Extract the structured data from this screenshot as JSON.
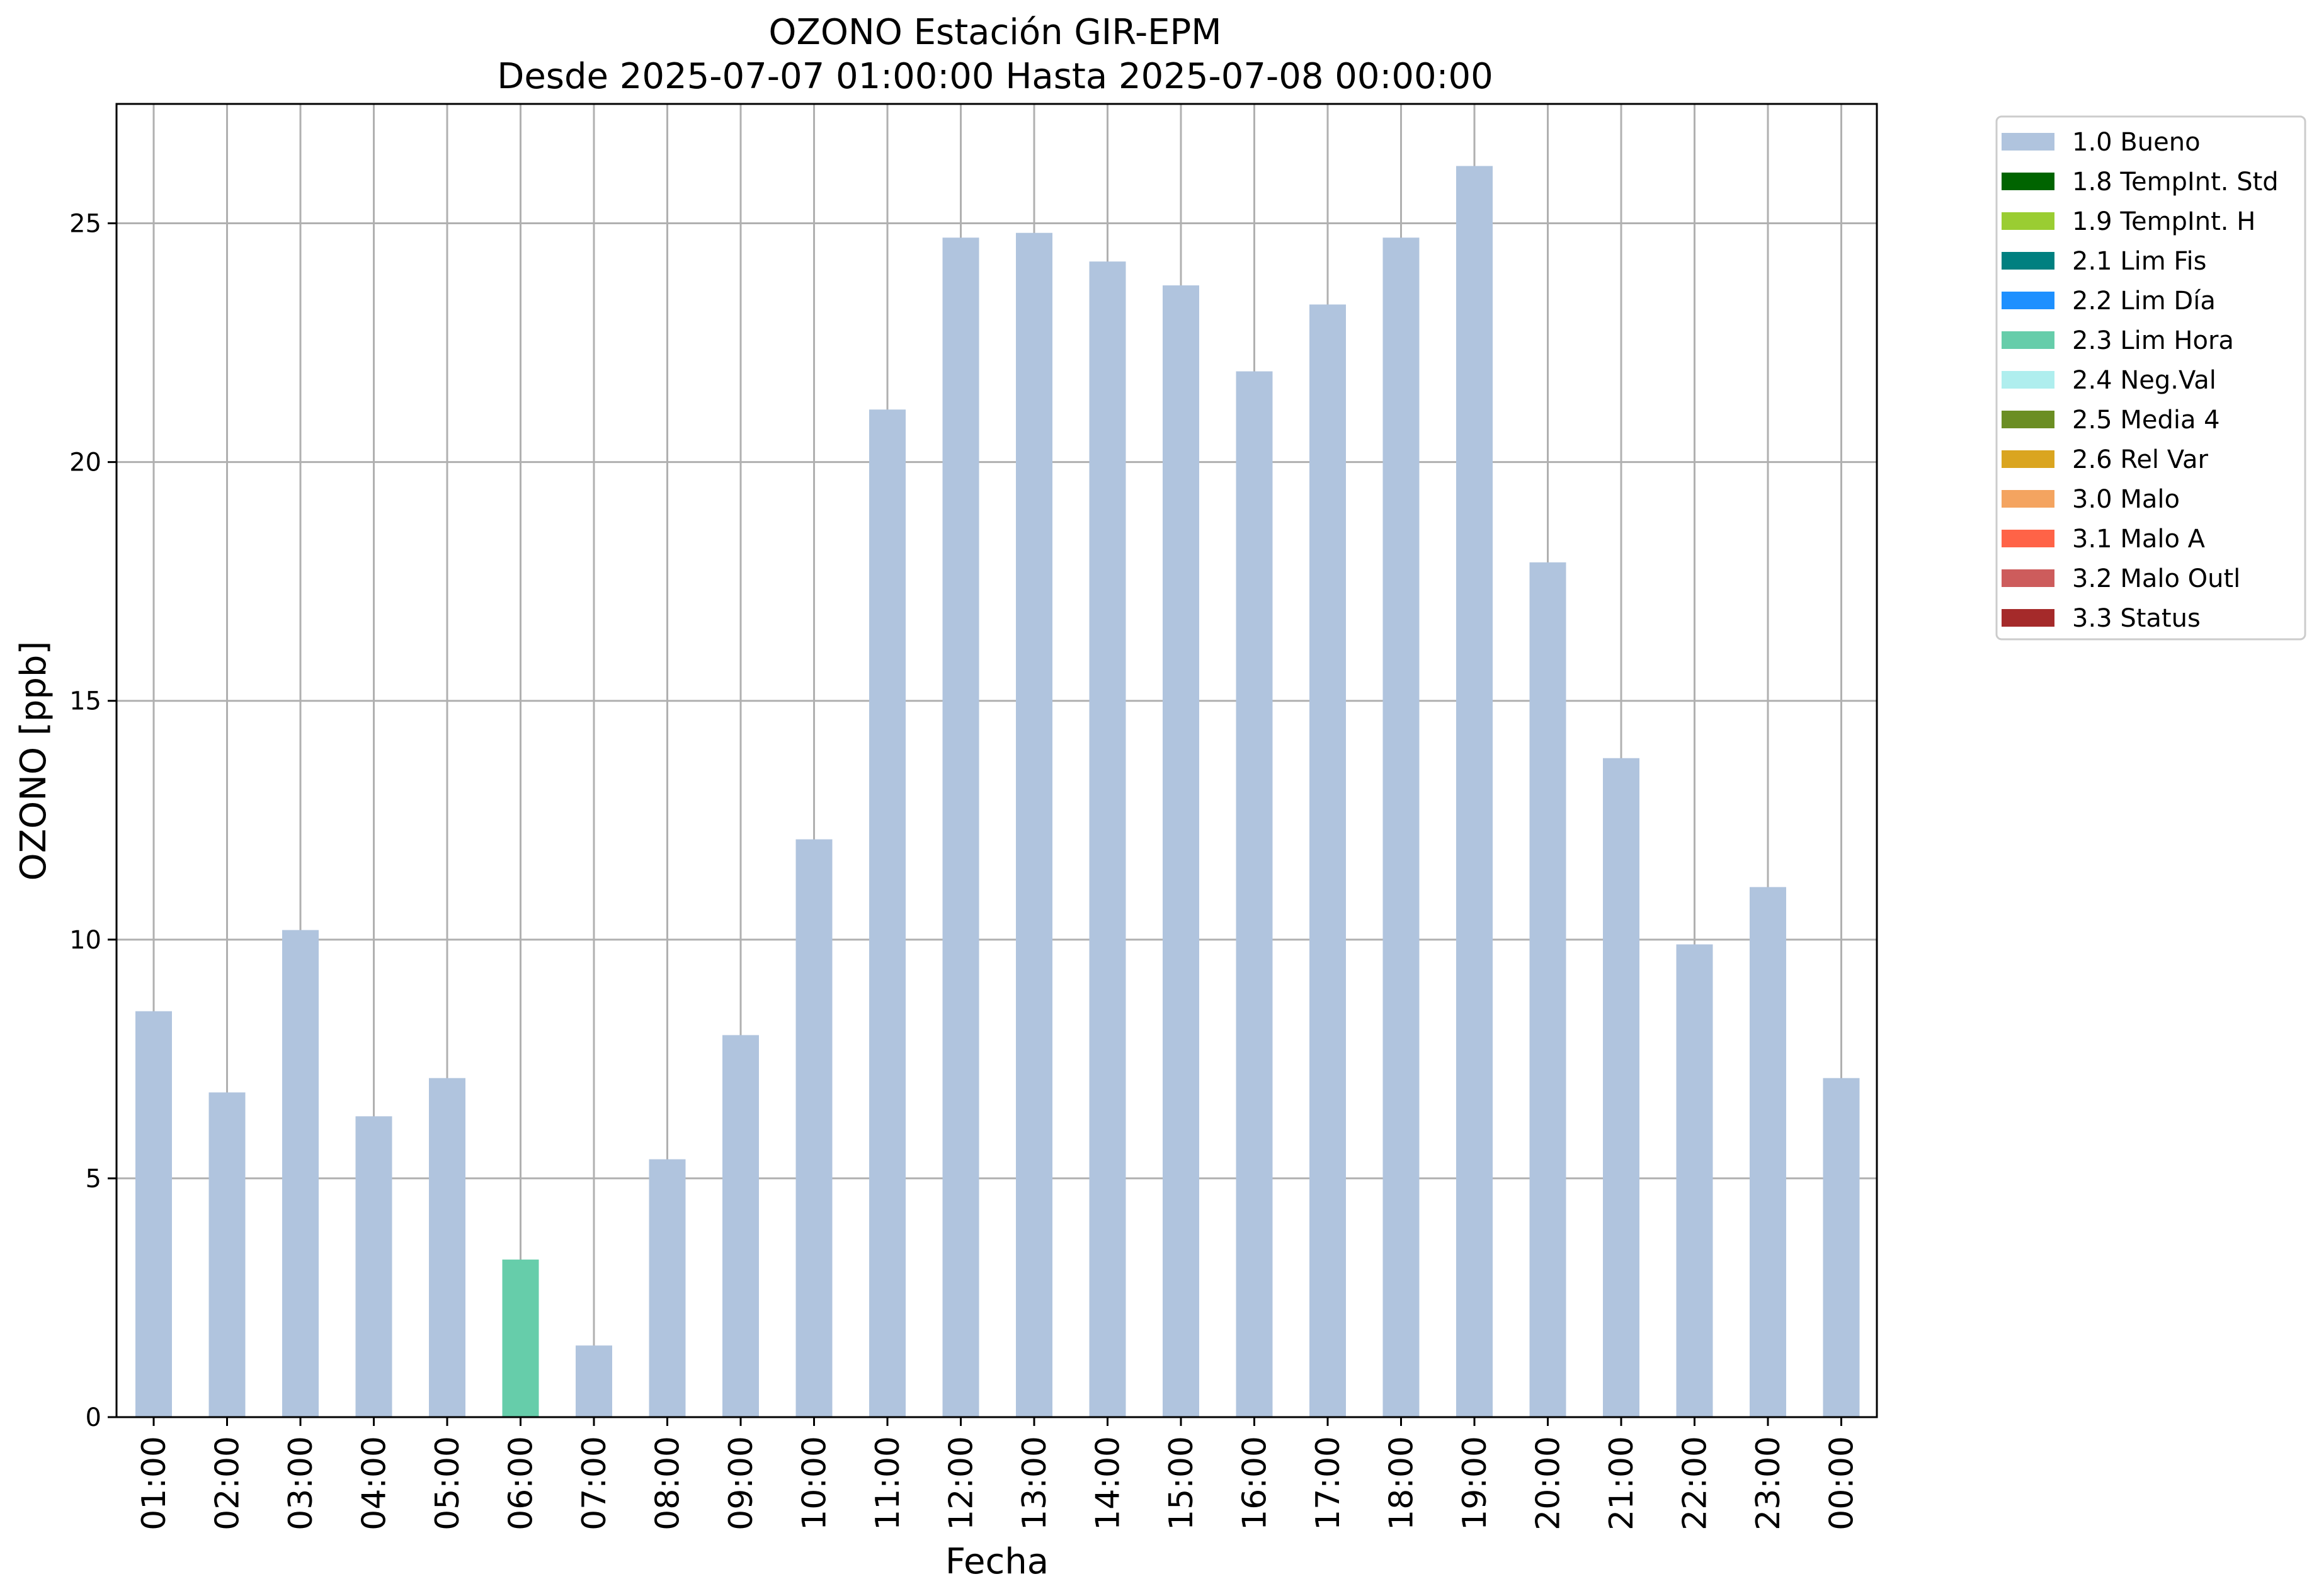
{
  "chart_data": {
    "type": "bar",
    "title": "OZONO Estación GIR-EPM",
    "subtitle": "Desde 2025-07-07 01:00:00 Hasta 2025-07-08 00:00:00",
    "xlabel": "Fecha",
    "ylabel": "OZONO [ppb]",
    "ylim": [
      0,
      27.5
    ],
    "yticks": [
      "0",
      "5",
      "10",
      "15",
      "20",
      "25"
    ],
    "grid": true,
    "legend_position": "outside-top-right",
    "categories": [
      "01:00",
      "02:00",
      "03:00",
      "04:00",
      "05:00",
      "06:00",
      "07:00",
      "08:00",
      "09:00",
      "10:00",
      "11:00",
      "12:00",
      "13:00",
      "14:00",
      "15:00",
      "16:00",
      "17:00",
      "18:00",
      "19:00",
      "20:00",
      "21:00",
      "22:00",
      "23:00",
      "00:00"
    ],
    "values": [
      8.5,
      6.8,
      10.2,
      6.3,
      7.1,
      3.3,
      1.5,
      5.4,
      8.0,
      12.1,
      21.1,
      24.7,
      24.8,
      24.2,
      23.7,
      21.9,
      23.3,
      24.7,
      26.2,
      17.9,
      13.8,
      9.9,
      11.1,
      7.1
    ],
    "flags": [
      "1.0 Bueno",
      "1.0 Bueno",
      "1.0 Bueno",
      "1.0 Bueno",
      "1.0 Bueno",
      "2.3 Lim Hora",
      "1.0 Bueno",
      "1.0 Bueno",
      "1.0 Bueno",
      "1.0 Bueno",
      "1.0 Bueno",
      "1.0 Bueno",
      "1.0 Bueno",
      "1.0 Bueno",
      "1.0 Bueno",
      "1.0 Bueno",
      "1.0 Bueno",
      "1.0 Bueno",
      "1.0 Bueno",
      "1.0 Bueno",
      "1.0 Bueno",
      "1.0 Bueno",
      "1.0 Bueno",
      "1.0 Bueno"
    ],
    "legend": [
      {
        "label": "1.0 Bueno",
        "color": "#b0c4de"
      },
      {
        "label": "1.8 TempInt. Std",
        "color": "#006400"
      },
      {
        "label": "1.9 TempInt. H",
        "color": "#9acd32"
      },
      {
        "label": "2.1 Lim Fis",
        "color": "#008080"
      },
      {
        "label": "2.2 Lim Día",
        "color": "#1e90ff"
      },
      {
        "label": "2.3 Lim Hora",
        "color": "#66cdaa"
      },
      {
        "label": "2.4 Neg.Val",
        "color": "#afeeee"
      },
      {
        "label": "2.5 Media 4",
        "color": "#6b8e23"
      },
      {
        "label": "2.6 Rel Var",
        "color": "#daa520"
      },
      {
        "label": "3.0 Malo",
        "color": "#f4a460"
      },
      {
        "label": "3.1 Malo A",
        "color": "#ff6347"
      },
      {
        "label": "3.2 Malo Outl",
        "color": "#cd5c5c"
      },
      {
        "label": "3.3 Status",
        "color": "#a52a2a"
      }
    ]
  }
}
